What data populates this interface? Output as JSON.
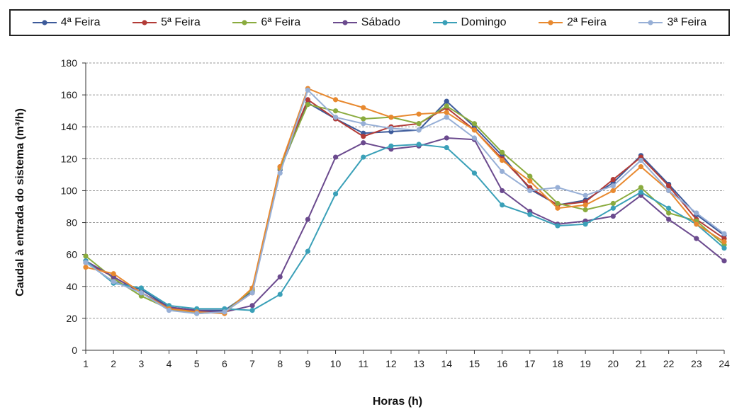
{
  "chart_data": {
    "type": "line",
    "xlabel": "Horas (h)",
    "ylabel": "Caudal à entrada do sistema (m³/h)",
    "ylim": [
      0,
      180
    ],
    "yticks": [
      0,
      20,
      40,
      60,
      80,
      100,
      120,
      140,
      160,
      180
    ],
    "categories": [
      "1",
      "2",
      "3",
      "4",
      "5",
      "6",
      "7",
      "8",
      "9",
      "10",
      "11",
      "12",
      "13",
      "14",
      "15",
      "16",
      "17",
      "18",
      "19",
      "20",
      "21",
      "22",
      "23",
      "24"
    ],
    "grid": true,
    "legend_position": "top",
    "series": [
      {
        "name": "4ª Feira",
        "color": "#3c5a9a",
        "values": [
          55,
          43,
          38,
          27,
          25,
          25,
          37,
          113,
          155,
          145,
          136,
          137,
          138,
          156,
          140,
          122,
          101,
          91,
          94,
          105,
          122,
          104,
          85,
          72
        ]
      },
      {
        "name": "5ª Feira",
        "color": "#b23b37",
        "values": [
          55,
          46,
          36,
          27,
          24,
          24,
          36,
          115,
          157,
          145,
          134,
          140,
          142,
          152,
          138,
          120,
          102,
          91,
          93,
          107,
          121,
          103,
          82,
          70
        ]
      },
      {
        "name": "6ª Feira",
        "color": "#8aab3e",
        "values": [
          59,
          45,
          34,
          26,
          23,
          24,
          38,
          114,
          154,
          150,
          145,
          146,
          142,
          153,
          142,
          124,
          109,
          92,
          88,
          92,
          102,
          86,
          81,
          66
        ]
      },
      {
        "name": "Sábado",
        "color": "#6b4a8e",
        "values": [
          56,
          46,
          36,
          27,
          25,
          24,
          28,
          46,
          82,
          121,
          130,
          126,
          128,
          133,
          132,
          100,
          87,
          79,
          81,
          84,
          97,
          82,
          70,
          56
        ]
      },
      {
        "name": "Domingo",
        "color": "#3aa0b8",
        "values": [
          56,
          42,
          39,
          28,
          26,
          26,
          25,
          35,
          62,
          98,
          121,
          128,
          129,
          127,
          111,
          91,
          85,
          78,
          79,
          89,
          99,
          89,
          79,
          64
        ]
      },
      {
        "name": "2ª Feira",
        "color": "#e8892f",
        "values": [
          52,
          48,
          36,
          26,
          24,
          23,
          39,
          115,
          164,
          157,
          152,
          146,
          148,
          149,
          138,
          119,
          106,
          89,
          91,
          100,
          115,
          100,
          79,
          68
        ]
      },
      {
        "name": "3ª Feira",
        "color": "#97afd6",
        "values": [
          55,
          43,
          36,
          25,
          23,
          24,
          36,
          111,
          163,
          146,
          142,
          139,
          138,
          146,
          133,
          112,
          100,
          102,
          97,
          103,
          119,
          100,
          86,
          73
        ]
      }
    ]
  }
}
